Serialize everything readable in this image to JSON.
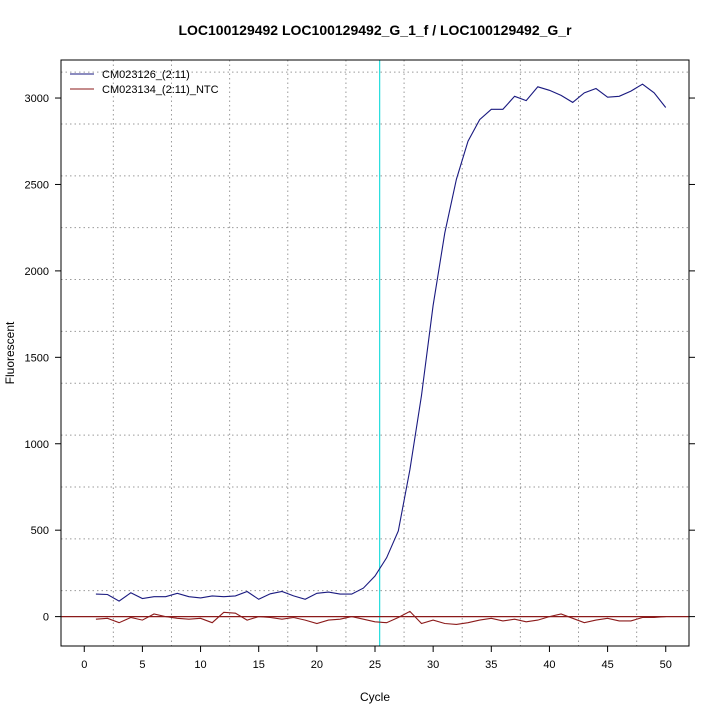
{
  "chart_data": {
    "type": "line",
    "title": "LOC100129492  LOC100129492_G_1_f / LOC100129492_G_r",
    "xlabel": "Cycle",
    "ylabel": "Fluorescent",
    "xlim": [
      -2,
      52
    ],
    "ylim": [
      -170,
      3220
    ],
    "xticks": [
      0,
      5,
      10,
      15,
      20,
      25,
      30,
      35,
      40,
      45,
      50
    ],
    "yticks": [
      0,
      500,
      1000,
      1500,
      2000,
      2500,
      3000
    ],
    "grid_x": [
      2.5,
      7.5,
      12.5,
      17.5,
      22.5,
      27.5,
      32.5,
      37.5,
      42.5,
      47.5
    ],
    "grid_y": [
      150,
      450,
      750,
      1050,
      1350,
      1650,
      1950,
      2250,
      2550,
      2850,
      3150
    ],
    "grid": true,
    "legend_position": "top-left",
    "threshold_y": 0,
    "threshold_color": "#8b1a1a",
    "cycle_marker_x": 25.4,
    "cycle_marker_color": "#22dddd",
    "series": [
      {
        "name": "CM023126_(2:11)",
        "color": "#1a1a80",
        "x": [
          1,
          2,
          3,
          4,
          5,
          6,
          7,
          8,
          9,
          10,
          11,
          12,
          13,
          14,
          15,
          16,
          17,
          18,
          19,
          20,
          21,
          22,
          23,
          24,
          25,
          26,
          27,
          28,
          29,
          30,
          31,
          32,
          33,
          34,
          35,
          36,
          37,
          38,
          39,
          40,
          41,
          42,
          43,
          44,
          45,
          46,
          47,
          48,
          49,
          50
        ],
        "y": [
          130,
          128,
          90,
          138,
          105,
          115,
          115,
          135,
          115,
          108,
          120,
          115,
          120,
          145,
          100,
          132,
          145,
          120,
          100,
          135,
          142,
          130,
          130,
          165,
          235,
          340,
          495,
          850,
          1280,
          1800,
          2220,
          2530,
          2750,
          2875,
          2935,
          2935,
          3010,
          2985,
          3065,
          3045,
          3015,
          2975,
          3030,
          3055,
          3005,
          3010,
          3040,
          3080,
          3030,
          2945
        ]
      },
      {
        "name": "CM023134_(2:11)_NTC",
        "color": "#8b1a1a",
        "x": [
          1,
          2,
          3,
          4,
          5,
          6,
          7,
          8,
          9,
          10,
          11,
          12,
          13,
          14,
          15,
          16,
          17,
          18,
          19,
          20,
          21,
          22,
          23,
          24,
          25,
          26,
          27,
          28,
          29,
          30,
          31,
          32,
          33,
          34,
          35,
          36,
          37,
          38,
          39,
          40,
          41,
          42,
          43,
          44,
          45,
          46,
          47,
          48,
          49,
          50
        ],
        "y": [
          -15,
          -10,
          -35,
          -5,
          -20,
          15,
          0,
          -10,
          -15,
          -10,
          -35,
          25,
          20,
          -20,
          0,
          -5,
          -15,
          -5,
          -20,
          -40,
          -20,
          -15,
          0,
          -15,
          -30,
          -35,
          -5,
          30,
          -40,
          -20,
          -40,
          -45,
          -35,
          -20,
          -10,
          -25,
          -15,
          -30,
          -20,
          0,
          15,
          -10,
          -35,
          -20,
          -10,
          -25,
          -25,
          -5,
          -5,
          0
        ]
      }
    ]
  }
}
